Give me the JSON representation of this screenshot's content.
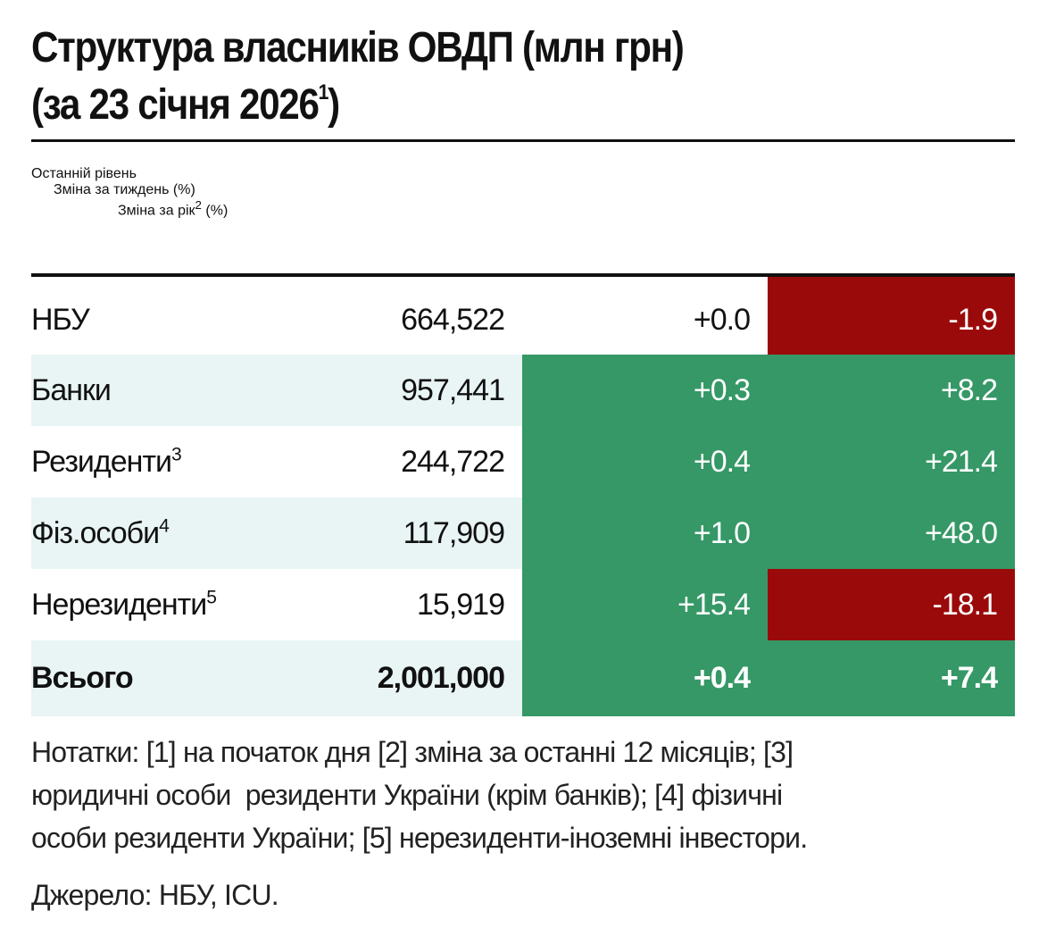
{
  "header": {
    "title_line1": "Структура власників ОВДП (млн грн)",
    "title_line2": "(за 23 січня 2026",
    "title_note": "1",
    "title_close": ")"
  },
  "table": {
    "palette": {
      "green": "#359866",
      "red": "#9b0a0a"
    },
    "columns": [
      {
        "text": "Останній рівень"
      },
      {
        "text": "Зміна за тиждень (%)"
      },
      {
        "text": "Зміна за рік",
        "note": "2",
        "after": " (%)"
      }
    ],
    "rows": [
      {
        "label": "НБУ",
        "level": "664,522",
        "week": "+0.0",
        "year": "-1.9",
        "year_fill": "red"
      },
      {
        "label": "Банки",
        "level": "957,441",
        "week": "+0.3",
        "year": "+8.2",
        "week_fill": "green",
        "year_fill": "green"
      },
      {
        "label": "Резиденти",
        "note": "3",
        "level": "244,722",
        "week": "+0.4",
        "year": "+21.4",
        "week_fill": "green",
        "year_fill": "green"
      },
      {
        "label": "Фіз.особи",
        "note": "4",
        "level": "117,909",
        "week": "+1.0",
        "year": "+48.0",
        "week_fill": "green",
        "year_fill": "green"
      },
      {
        "label": "Нерезиденти",
        "note": "5",
        "level": "15,919",
        "week": "+15.4",
        "year": "-18.1",
        "week_fill": "green",
        "year_fill": "red"
      },
      {
        "label": "Всього",
        "level": "2,001,000",
        "week": "+0.4",
        "year": "+7.4",
        "week_fill": "green",
        "year_fill": "green",
        "bold": true
      }
    ]
  },
  "notes": [
    "Нотатки: [1] на початок дня [2] зміна за останні 12 місяців; [3]",
    "юридичні особи  резиденти України (крім банків); [4] фізичні",
    "особи резиденти України; [5] нерезиденти-іноземні інвестори."
  ],
  "source": "Джерело: НБУ, ICU."
}
